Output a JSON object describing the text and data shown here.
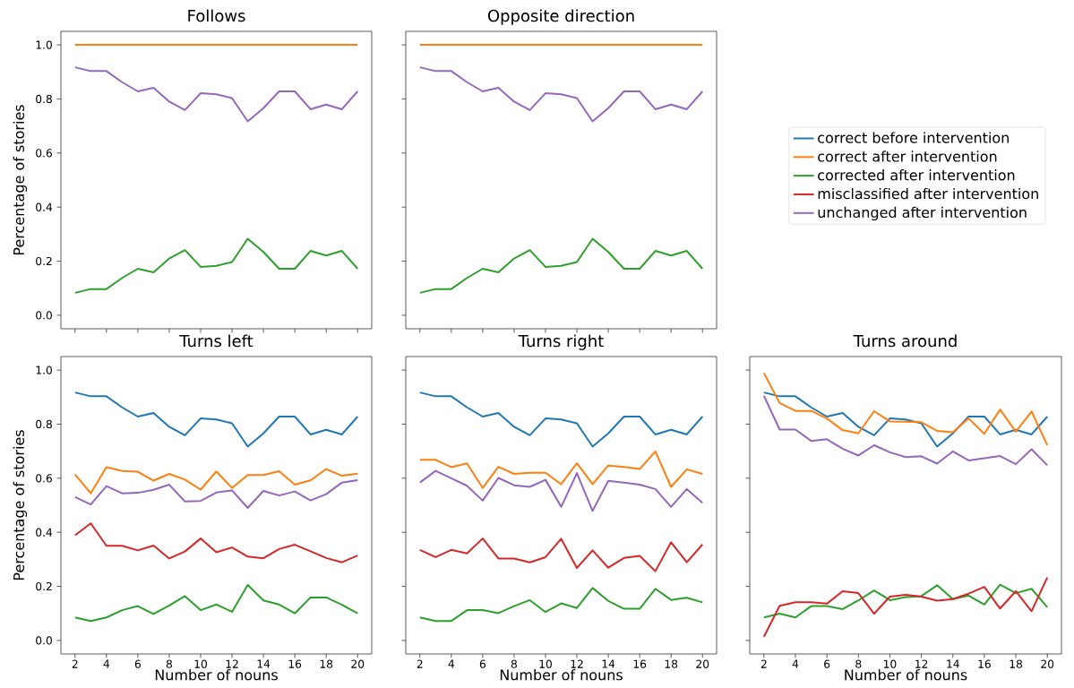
{
  "chart_data": [
    {
      "type": "line",
      "title": "Follows",
      "ylabel": "Percentage of stories",
      "x": [
        2,
        3,
        4,
        5,
        6,
        7,
        8,
        9,
        10,
        11,
        12,
        13,
        14,
        15,
        16,
        17,
        18,
        19,
        20
      ],
      "xlim": [
        1.1,
        20.9
      ],
      "ylim": [
        -0.05,
        1.05
      ],
      "xticks": [
        2,
        4,
        6,
        8,
        10,
        12,
        14,
        16,
        18,
        20
      ],
      "yticks": [
        {
          "value": 0,
          "label": "0.0"
        },
        {
          "value": 0.2,
          "label": "0.2"
        },
        {
          "value": 0.4,
          "label": "0.4"
        },
        {
          "value": 0.6,
          "label": "0.6"
        },
        {
          "value": 0.8,
          "label": "0.8"
        },
        {
          "value": 1.0,
          "label": "1.0"
        }
      ],
      "tick_labels": "y",
      "series": [
        {
          "color": "#ff7f0e",
          "values": [
            1,
            1,
            1,
            1,
            1,
            1,
            1,
            1,
            1,
            1,
            1,
            1,
            1,
            1,
            1,
            1,
            1,
            1,
            1
          ]
        },
        {
          "color": "#2ca02c",
          "values": [
            0.083,
            0.097,
            0.097,
            0.138,
            0.172,
            0.159,
            0.21,
            0.241,
            0.179,
            0.183,
            0.197,
            0.283,
            0.234,
            0.172,
            0.172,
            0.238,
            0.221,
            0.238,
            0.172
          ]
        },
        {
          "color": "#9467bd",
          "values": [
            0.917,
            0.903,
            0.903,
            0.862,
            0.828,
            0.841,
            0.79,
            0.759,
            0.821,
            0.817,
            0.803,
            0.717,
            0.766,
            0.828,
            0.828,
            0.762,
            0.779,
            0.762,
            0.828
          ]
        }
      ]
    },
    {
      "type": "line",
      "title": "Opposite direction",
      "x": [
        2,
        3,
        4,
        5,
        6,
        7,
        8,
        9,
        10,
        11,
        12,
        13,
        14,
        15,
        16,
        17,
        18,
        19,
        20
      ],
      "xlim": [
        1.1,
        20.9
      ],
      "ylim": [
        -0.05,
        1.05
      ],
      "xticks": [
        2,
        4,
        6,
        8,
        10,
        12,
        14,
        16,
        18,
        20
      ],
      "yticks": [
        0,
        0.2,
        0.4,
        0.6,
        0.8,
        1.0
      ],
      "tick_labels": false,
      "series": [
        {
          "color": "#ff7f0e",
          "values": [
            1,
            1,
            1,
            1,
            1,
            1,
            1,
            1,
            1,
            1,
            1,
            1,
            1,
            1,
            1,
            1,
            1,
            1,
            1
          ]
        },
        {
          "color": "#2ca02c",
          "values": [
            0.083,
            0.097,
            0.097,
            0.138,
            0.172,
            0.159,
            0.21,
            0.241,
            0.179,
            0.183,
            0.197,
            0.283,
            0.234,
            0.172,
            0.172,
            0.238,
            0.221,
            0.238,
            0.172
          ]
        },
        {
          "color": "#9467bd",
          "values": [
            0.917,
            0.903,
            0.903,
            0.862,
            0.828,
            0.841,
            0.79,
            0.759,
            0.821,
            0.817,
            0.803,
            0.717,
            0.766,
            0.828,
            0.828,
            0.762,
            0.779,
            0.762,
            0.828
          ]
        }
      ]
    },
    {
      "type": "line",
      "title": "Turns left",
      "xlabel": "Number of nouns",
      "ylabel": "Percentage of stories",
      "x": [
        2,
        3,
        4,
        5,
        6,
        7,
        8,
        9,
        10,
        11,
        12,
        13,
        14,
        15,
        16,
        17,
        18,
        19,
        20
      ],
      "xlim": [
        1.1,
        20.9
      ],
      "ylim": [
        -0.05,
        1.05
      ],
      "xticks": [
        2,
        4,
        6,
        8,
        10,
        12,
        14,
        16,
        18,
        20
      ],
      "yticks": [
        {
          "value": 0,
          "label": "0.0"
        },
        {
          "value": 0.2,
          "label": "0.2"
        },
        {
          "value": 0.4,
          "label": "0.4"
        },
        {
          "value": 0.6,
          "label": "0.6"
        },
        {
          "value": 0.8,
          "label": "0.8"
        },
        {
          "value": 1.0,
          "label": "1.0"
        }
      ],
      "series": [
        {
          "color": "#1f77b4",
          "values": [
            0.917,
            0.903,
            0.903,
            0.862,
            0.828,
            0.841,
            0.79,
            0.759,
            0.821,
            0.817,
            0.803,
            0.717,
            0.766,
            0.828,
            0.828,
            0.762,
            0.779,
            0.762,
            0.828
          ]
        },
        {
          "color": "#ff7f0e",
          "values": [
            0.614,
            0.544,
            0.641,
            0.627,
            0.624,
            0.591,
            0.616,
            0.595,
            0.558,
            0.625,
            0.564,
            0.612,
            0.612,
            0.626,
            0.576,
            0.592,
            0.634,
            0.609,
            0.617
          ]
        },
        {
          "color": "#2ca02c",
          "values": [
            0.085,
            0.072,
            0.085,
            0.112,
            0.127,
            0.098,
            0.129,
            0.164,
            0.112,
            0.133,
            0.106,
            0.205,
            0.148,
            0.133,
            0.1,
            0.159,
            0.159,
            0.132,
            0.1
          ]
        },
        {
          "color": "#d62728",
          "values": [
            0.389,
            0.433,
            0.35,
            0.35,
            0.333,
            0.351,
            0.303,
            0.329,
            0.377,
            0.326,
            0.344,
            0.31,
            0.304,
            0.338,
            0.354,
            0.33,
            0.305,
            0.289,
            0.314
          ]
        },
        {
          "color": "#9467bd",
          "values": [
            0.53,
            0.503,
            0.571,
            0.544,
            0.546,
            0.557,
            0.576,
            0.514,
            0.516,
            0.547,
            0.555,
            0.49,
            0.553,
            0.536,
            0.551,
            0.518,
            0.541,
            0.584,
            0.593
          ]
        }
      ]
    },
    {
      "type": "line",
      "title": "Turns right",
      "xlabel": "Number of nouns",
      "x": [
        2,
        3,
        4,
        5,
        6,
        7,
        8,
        9,
        10,
        11,
        12,
        13,
        14,
        15,
        16,
        17,
        18,
        19,
        20
      ],
      "xlim": [
        1.1,
        20.9
      ],
      "ylim": [
        -0.05,
        1.05
      ],
      "xticks": [
        2,
        4,
        6,
        8,
        10,
        12,
        14,
        16,
        18,
        20
      ],
      "yticks": [
        0,
        0.2,
        0.4,
        0.6,
        0.8,
        1.0
      ],
      "tick_labels": "x",
      "series": [
        {
          "color": "#1f77b4",
          "values": [
            0.917,
            0.903,
            0.903,
            0.862,
            0.828,
            0.841,
            0.79,
            0.759,
            0.821,
            0.817,
            0.803,
            0.717,
            0.766,
            0.828,
            0.828,
            0.762,
            0.779,
            0.762,
            0.828
          ]
        },
        {
          "color": "#ff7f0e",
          "values": [
            0.668,
            0.668,
            0.641,
            0.655,
            0.564,
            0.642,
            0.616,
            0.62,
            0.62,
            0.578,
            0.655,
            0.578,
            0.647,
            0.642,
            0.634,
            0.699,
            0.568,
            0.633,
            0.616
          ]
        },
        {
          "color": "#2ca02c",
          "values": [
            0.085,
            0.072,
            0.072,
            0.112,
            0.112,
            0.101,
            0.127,
            0.149,
            0.105,
            0.137,
            0.12,
            0.194,
            0.146,
            0.117,
            0.117,
            0.191,
            0.15,
            0.158,
            0.141
          ]
        },
        {
          "color": "#d62728",
          "values": [
            0.335,
            0.308,
            0.335,
            0.322,
            0.377,
            0.303,
            0.303,
            0.289,
            0.308,
            0.376,
            0.268,
            0.333,
            0.269,
            0.305,
            0.313,
            0.256,
            0.363,
            0.289,
            0.355
          ]
        },
        {
          "color": "#9467bd",
          "values": [
            0.584,
            0.627,
            0.6,
            0.572,
            0.517,
            0.601,
            0.574,
            0.568,
            0.594,
            0.494,
            0.619,
            0.479,
            0.59,
            0.584,
            0.576,
            0.56,
            0.494,
            0.56,
            0.509
          ]
        }
      ]
    },
    {
      "type": "line",
      "title": "Turns around",
      "xlabel": "Number of nouns",
      "x": [
        2,
        3,
        4,
        5,
        6,
        7,
        8,
        9,
        10,
        11,
        12,
        13,
        14,
        15,
        16,
        17,
        18,
        19,
        20
      ],
      "xlim": [
        1.1,
        20.9
      ],
      "ylim": [
        -0.05,
        1.05
      ],
      "xticks": [
        2,
        4,
        6,
        8,
        10,
        12,
        14,
        16,
        18,
        20
      ],
      "yticks": [
        0,
        0.2,
        0.4,
        0.6,
        0.8,
        1.0
      ],
      "tick_labels": "x",
      "legend": "top",
      "series": [
        {
          "name": "correct before intervention",
          "color": "#1f77b4",
          "values": [
            0.917,
            0.903,
            0.903,
            0.862,
            0.828,
            0.841,
            0.79,
            0.759,
            0.821,
            0.817,
            0.803,
            0.717,
            0.766,
            0.828,
            0.828,
            0.762,
            0.779,
            0.762,
            0.828
          ]
        },
        {
          "name": "correct after intervention",
          "color": "#ff7f0e",
          "values": [
            0.989,
            0.878,
            0.849,
            0.849,
            0.821,
            0.778,
            0.766,
            0.848,
            0.81,
            0.809,
            0.807,
            0.775,
            0.77,
            0.821,
            0.764,
            0.854,
            0.772,
            0.847,
            0.722
          ]
        },
        {
          "name": "corrected after intervention",
          "color": "#2ca02c",
          "values": [
            0.085,
            0.099,
            0.085,
            0.127,
            0.127,
            0.116,
            0.148,
            0.185,
            0.149,
            0.16,
            0.164,
            0.204,
            0.153,
            0.166,
            0.133,
            0.206,
            0.175,
            0.191,
            0.123
          ]
        },
        {
          "name": "misclassified after intervention",
          "color": "#d62728",
          "values": [
            0.014,
            0.128,
            0.141,
            0.141,
            0.136,
            0.182,
            0.175,
            0.099,
            0.162,
            0.169,
            0.162,
            0.147,
            0.153,
            0.173,
            0.198,
            0.118,
            0.182,
            0.108,
            0.233
          ]
        },
        {
          "name": "unchanged after intervention",
          "color": "#9467bd",
          "values": [
            0.905,
            0.78,
            0.78,
            0.738,
            0.744,
            0.709,
            0.684,
            0.722,
            0.696,
            0.678,
            0.681,
            0.654,
            0.699,
            0.666,
            0.674,
            0.682,
            0.652,
            0.707,
            0.648
          ]
        }
      ]
    }
  ]
}
